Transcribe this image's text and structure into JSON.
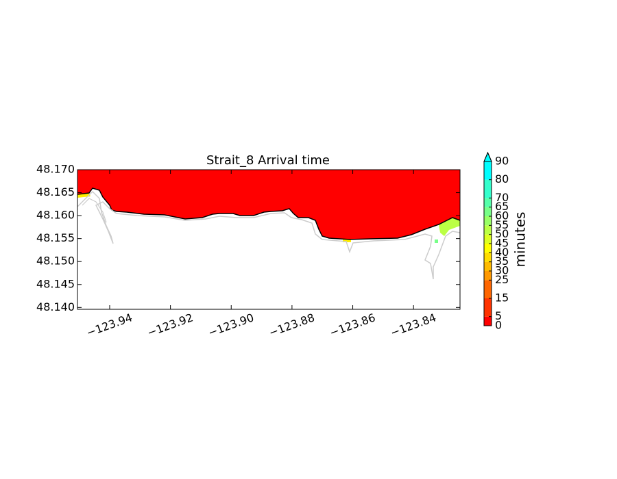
{
  "chart_data": {
    "type": "contour-map",
    "title": "Strait_8 Arrival time",
    "xlim": [
      -123.9506,
      -123.8247
    ],
    "xticks": [
      {
        "value": -123.94,
        "label": "−123.94"
      },
      {
        "value": -123.92,
        "label": "−123.92"
      },
      {
        "value": -123.9,
        "label": "−123.90"
      },
      {
        "value": -123.88,
        "label": "−123.88"
      },
      {
        "value": -123.86,
        "label": "−123.86"
      },
      {
        "value": -123.84,
        "label": "−123.84"
      }
    ],
    "ylim": [
      48.1396,
      48.17
    ],
    "yticks": [
      {
        "value": 48.14,
        "label": "48.140"
      },
      48.145,
      {
        "value": 48.15,
        "label": "48.150"
      },
      48.155,
      {
        "value": 48.16,
        "label": "48.160"
      },
      48.165,
      {
        "value": 48.17,
        "label": "48.170"
      }
    ],
    "colorbar": {
      "label": "minutes",
      "lim": [
        0,
        90
      ],
      "ticks": [
        0,
        5,
        15,
        25,
        30,
        35,
        40,
        45,
        50,
        55,
        60,
        65,
        70,
        80,
        90
      ],
      "colors": [
        "#ff0000",
        "#ff3300",
        "#ff6600",
        "#ff9900",
        "#ffbb00",
        "#ffdd00",
        "#ffff00",
        "#ddff22",
        "#bbff44",
        "#99ff66",
        "#77ff88",
        "#55ffaa",
        "#33ffcc",
        "#00ffff"
      ]
    }
  }
}
